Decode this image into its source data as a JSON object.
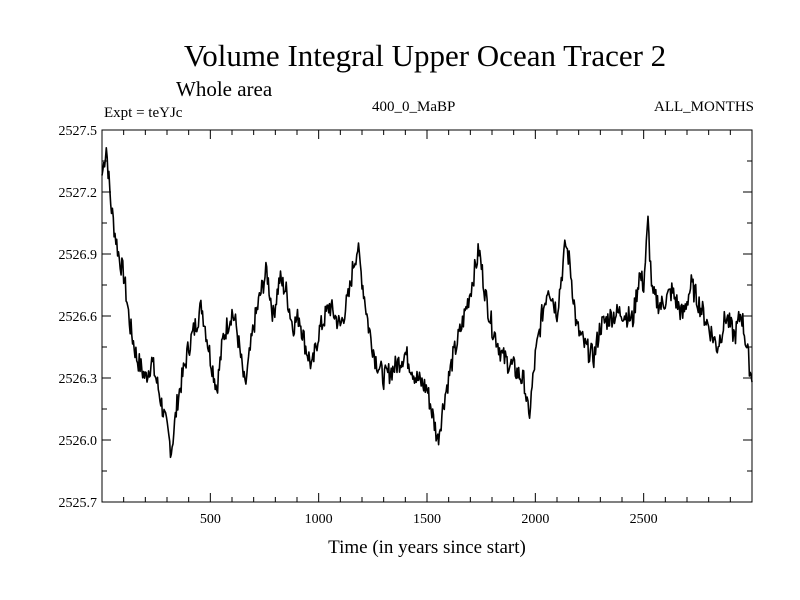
{
  "chart_data": {
    "type": "line",
    "title": "Volume Integral Upper Ocean Tracer 2",
    "subtitle": "Whole area",
    "expt_label": "Expt = teYJc",
    "period_label": "400_0_MaBP",
    "months_label": "ALL_MONTHS",
    "xlabel": "Time (in years since start)",
    "ylabel": "",
    "xlim": [
      0,
      3000
    ],
    "ylim": [
      2525.7,
      2527.5
    ],
    "xticks": [
      500,
      1000,
      1500,
      2000,
      2500
    ],
    "yticks": [
      2525.7,
      2526.0,
      2526.3,
      2526.6,
      2526.9,
      2527.2,
      2527.5
    ],
    "ytick_labels": [
      "2525.7",
      "2526.0",
      "2526.3",
      "2526.6",
      "2526.9",
      "2527.2",
      "2527.5"
    ],
    "series": [
      {
        "name": "tracer2",
        "x": [
          0,
          20,
          40,
          60,
          80,
          100,
          130,
          160,
          200,
          230,
          260,
          290,
          320,
          350,
          380,
          400,
          430,
          460,
          500,
          530,
          560,
          600,
          620,
          660,
          700,
          730,
          760,
          790,
          820,
          850,
          880,
          910,
          940,
          970,
          1000,
          1050,
          1100,
          1140,
          1160,
          1180,
          1200,
          1230,
          1260,
          1300,
          1350,
          1400,
          1450,
          1500,
          1530,
          1550,
          1580,
          1620,
          1660,
          1700,
          1740,
          1770,
          1800,
          1850,
          1900,
          1950,
          1970,
          2000,
          2030,
          2060,
          2100,
          2140,
          2160,
          2190,
          2230,
          2270,
          2300,
          2350,
          2400,
          2450,
          2480,
          2500,
          2520,
          2540,
          2580,
          2630,
          2680,
          2720,
          2760,
          2800,
          2840,
          2880,
          2920,
          2950,
          2980,
          3000
        ],
        "values": [
          2527.28,
          2527.42,
          2527.15,
          2527.0,
          2526.88,
          2526.8,
          2526.55,
          2526.4,
          2526.3,
          2526.38,
          2526.25,
          2526.1,
          2525.95,
          2526.2,
          2526.35,
          2526.45,
          2526.55,
          2526.65,
          2526.4,
          2526.25,
          2526.5,
          2526.62,
          2526.55,
          2526.25,
          2526.55,
          2526.7,
          2526.82,
          2526.6,
          2526.78,
          2526.72,
          2526.55,
          2526.6,
          2526.45,
          2526.35,
          2526.52,
          2526.65,
          2526.55,
          2526.7,
          2526.85,
          2526.93,
          2526.78,
          2526.55,
          2526.4,
          2526.3,
          2526.35,
          2526.42,
          2526.3,
          2526.25,
          2526.1,
          2526.0,
          2526.2,
          2526.4,
          2526.55,
          2526.72,
          2526.92,
          2526.7,
          2526.55,
          2526.4,
          2526.35,
          2526.28,
          2526.1,
          2526.4,
          2526.6,
          2526.75,
          2526.62,
          2526.95,
          2526.85,
          2526.55,
          2526.45,
          2526.4,
          2526.55,
          2526.6,
          2526.62,
          2526.58,
          2526.8,
          2526.75,
          2527.05,
          2526.7,
          2526.65,
          2526.72,
          2526.6,
          2526.75,
          2526.65,
          2526.55,
          2526.45,
          2526.6,
          2526.5,
          2526.62,
          2526.42,
          2526.28
        ]
      }
    ]
  }
}
